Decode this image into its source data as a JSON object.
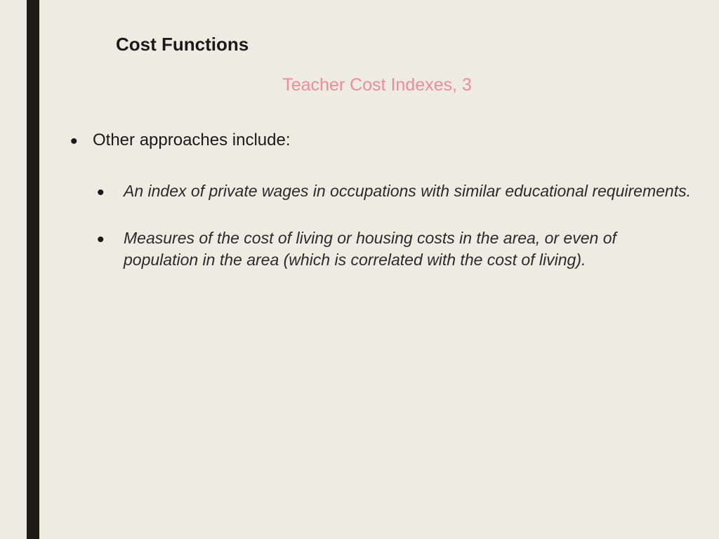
{
  "slide": {
    "background_color": "#eeece2",
    "accent_bar_color": "#1d1d16",
    "title": "Cost Functions",
    "title_color": "#1a1a1a",
    "title_fontsize": 26,
    "subtitle": "Teacher Cost Indexes, 3",
    "subtitle_color": "#ed8d9c",
    "subtitle_fontsize": 25,
    "body_text_color": "#1a1a1a",
    "body_fontsize": 24,
    "sub_body_fontsize": 23,
    "bullets": [
      {
        "text": "Other approaches include:",
        "italic": false,
        "sub_bullets": [
          {
            "text": "An index of private wages in occupations with similar educational requirements.",
            "italic": true
          },
          {
            "text": "Measures of the cost of living or housing costs in the area, or even of population in the area (which is correlated with the cost of living).",
            "italic": true
          }
        ]
      }
    ]
  }
}
